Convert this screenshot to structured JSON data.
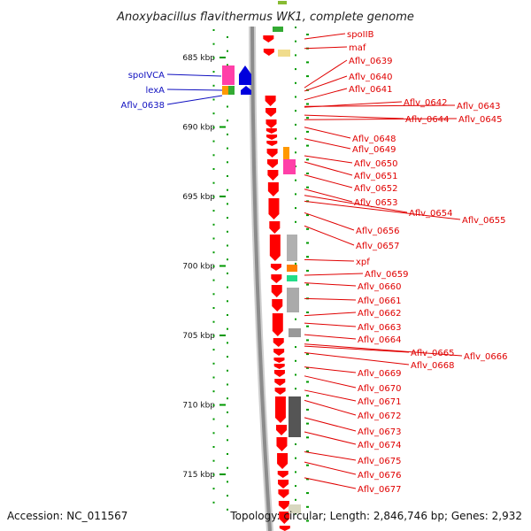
{
  "title": "Anoxybacillus flavithermus WK1, complete genome",
  "footer": {
    "accession": "Accession: NC_011567",
    "summary": "Topology: circular; Length: 2,846,746 bp; Genes: 2,932"
  },
  "colors": {
    "gene_red": "#ff0000",
    "ruler_green": "#009900",
    "backbone": "#888888",
    "left_label": "#1010c0",
    "right_label": "#e00000"
  },
  "scale": {
    "unit": "kbp",
    "ticks": [
      {
        "kbp": 685,
        "label": "685 kbp"
      },
      {
        "kbp": 690,
        "label": "690 kbp"
      },
      {
        "kbp": 695,
        "label": "695 kbp"
      },
      {
        "kbp": 700,
        "label": "700 kbp"
      },
      {
        "kbp": 705,
        "label": "705 kbp"
      },
      {
        "kbp": 710,
        "label": "710 kbp"
      },
      {
        "kbp": 715,
        "label": "715 kbp"
      }
    ]
  },
  "left_genes": [
    {
      "name": "spoIVCA",
      "kbp": 686.3
    },
    {
      "name": "lexA",
      "kbp": 687.2
    },
    {
      "name": "Aflv_0638",
      "kbp": 688.0
    }
  ],
  "right_genes": [
    {
      "name": "spoIIB",
      "kbp": 683.2
    },
    {
      "name": "maf",
      "kbp": 684.6
    },
    {
      "name": "Aflv_0639",
      "kbp": 687.3
    },
    {
      "name": "Aflv_0640",
      "kbp": 687.8
    },
    {
      "name": "Aflv_0641",
      "kbp": 688.3
    },
    {
      "name": "Aflv_0642",
      "kbp": 688.7
    },
    {
      "name": "Aflv_0643",
      "kbp": 688.9
    },
    {
      "name": "Aflv_0644",
      "kbp": 689.4
    },
    {
      "name": "Aflv_0645",
      "kbp": 689.6
    },
    {
      "name": "Aflv_0648",
      "kbp": 690.4
    },
    {
      "name": "Aflv_0649",
      "kbp": 691.1
    },
    {
      "name": "Aflv_0650",
      "kbp": 692.2
    },
    {
      "name": "Aflv_0651",
      "kbp": 692.9
    },
    {
      "name": "Aflv_0652",
      "kbp": 693.7
    },
    {
      "name": "Aflv_0653",
      "kbp": 694.6
    },
    {
      "name": "Aflv_0654",
      "kbp": 695.3
    },
    {
      "name": "Aflv_0655",
      "kbp": 695.6
    },
    {
      "name": "Aflv_0656",
      "kbp": 696.3
    },
    {
      "name": "Aflv_0657",
      "kbp": 697.5
    },
    {
      "name": "xpf",
      "kbp": 699.8
    },
    {
      "name": "Aflv_0659",
      "kbp": 700.8
    },
    {
      "name": "Aflv_0660",
      "kbp": 701.6
    },
    {
      "name": "Aflv_0661",
      "kbp": 702.6
    },
    {
      "name": "Aflv_0662",
      "kbp": 703.7
    },
    {
      "name": "Aflv_0663",
      "kbp": 704.5
    },
    {
      "name": "Aflv_0664",
      "kbp": 705.2
    },
    {
      "name": "Aflv_0665",
      "kbp": 705.9
    },
    {
      "name": "Aflv_0666",
      "kbp": 706.0
    },
    {
      "name": "Aflv_0668",
      "kbp": 706.5
    },
    {
      "name": "Aflv_0669",
      "kbp": 707.4
    },
    {
      "name": "Aflv_0670",
      "kbp": 708.3
    },
    {
      "name": "Aflv_0671",
      "kbp": 709.2
    },
    {
      "name": "Aflv_0672",
      "kbp": 709.8
    },
    {
      "name": "Aflv_0673",
      "kbp": 711.3
    },
    {
      "name": "Aflv_0674",
      "kbp": 712.2
    },
    {
      "name": "Aflv_0675",
      "kbp": 713.5
    },
    {
      "name": "Aflv_0676",
      "kbp": 714.5
    },
    {
      "name": "Aflv_0677",
      "kbp": 715.5
    }
  ]
}
